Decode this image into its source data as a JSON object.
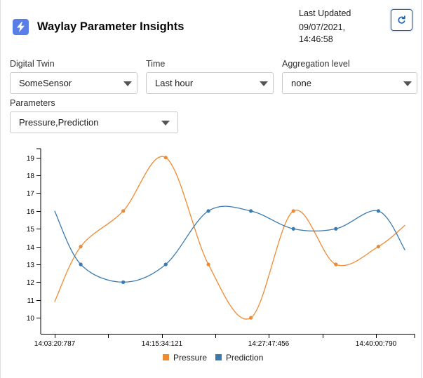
{
  "header": {
    "title": "Waylay Parameter Insights",
    "last_updated_label": "Last Updated",
    "last_updated_date": "09/07/2021,",
    "last_updated_time": "14:46:58",
    "app_icon": "lightning-bolt-icon",
    "refresh_icon": "refresh-icon"
  },
  "filters": {
    "digital_twin": {
      "label": "Digital Twin",
      "value": "SomeSensor"
    },
    "time": {
      "label": "Time",
      "value": "Last hour"
    },
    "aggregation": {
      "label": "Aggregation level",
      "value": "none"
    },
    "parameters": {
      "label": "Parameters",
      "value": "Pressure,Prediction"
    }
  },
  "colors": {
    "pressure": "#ef8a32",
    "prediction": "#3a7ab0",
    "app_icon_bg": "#5a7ee8",
    "refresh_border": "#1b5fa8"
  },
  "chart_data": {
    "type": "line",
    "title": "",
    "xlabel": "",
    "ylabel": "",
    "x_tick_labels": [
      "14:03:20:787",
      "14:15:34:121",
      "14:27:47:456",
      "14:40:00:790"
    ],
    "ylim": [
      9.1,
      19.5
    ],
    "y_ticks": [
      10,
      11,
      12,
      13,
      14,
      15,
      16,
      17,
      18,
      19
    ],
    "legend": "bottom",
    "series": [
      {
        "name": "Pressure",
        "color": "#ef8a32",
        "x": [
          "14:03:20",
          "14:06:19",
          "14:11:10",
          "14:16:01",
          "14:20:53",
          "14:25:44",
          "14:30:35",
          "14:35:26",
          "14:40:17",
          "14:43:20"
        ],
        "values": [
          10.9,
          14,
          16,
          19,
          13,
          10,
          16,
          13,
          14,
          15.2
        ],
        "markers": [
          false,
          true,
          true,
          true,
          true,
          true,
          true,
          true,
          true,
          false
        ]
      },
      {
        "name": "Prediction",
        "color": "#3a7ab0",
        "x": [
          "14:03:20",
          "14:06:19",
          "14:11:10",
          "14:16:01",
          "14:20:53",
          "14:25:44",
          "14:30:35",
          "14:35:26",
          "14:40:17",
          "14:43:20"
        ],
        "values": [
          16,
          13,
          12,
          13,
          16,
          16,
          15,
          15,
          16,
          13.8
        ],
        "markers": [
          false,
          true,
          true,
          true,
          true,
          true,
          true,
          true,
          true,
          false
        ]
      }
    ]
  }
}
